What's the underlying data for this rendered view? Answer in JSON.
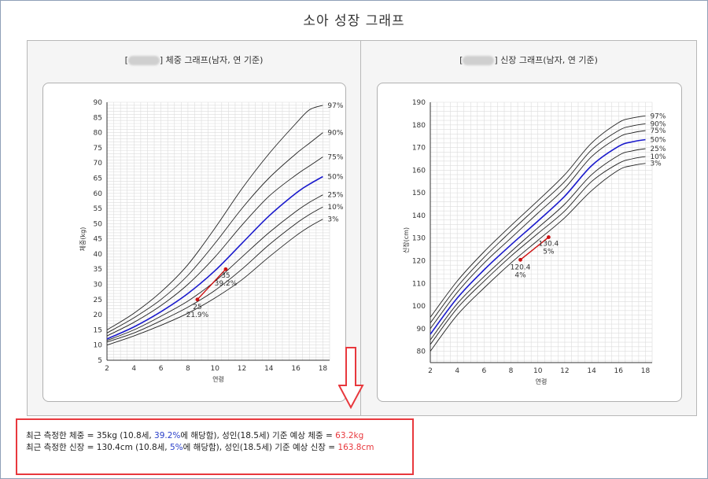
{
  "title": "소아 성장 그래프",
  "weight_panel": {
    "title_suffix": "] 체중 그래프(남자, 연 기준)"
  },
  "height_panel": {
    "title_suffix": "] 신장 그래프(남자, 연 기준)"
  },
  "summary": {
    "line1": {
      "a": "최근 측정한 체중 = 35kg (10.8세, ",
      "pct": "39.2%",
      "b": "에 해당함), 성인(18.5세) 기준 예상 체중 = ",
      "pred": "63.2kg"
    },
    "line2": {
      "a": "최근 측정한 신장 = 130.4cm (10.8세, ",
      "pct": "5%",
      "b": "에 해당함), 성인(18.5세) 기준 예상 신장 = ",
      "pred": "163.8cm"
    }
  },
  "colors": {
    "median_line": "#1a1acc",
    "measure": "#cc1111",
    "highlight": "#e8383d",
    "grid": "#dcdcdc"
  },
  "chart_data": [
    {
      "type": "line",
      "title": "",
      "xlabel": "연령",
      "ylabel": "체중(kg)",
      "xlim": [
        2,
        18.5
      ],
      "ylim": [
        5,
        90
      ],
      "xticks": [
        2,
        4,
        6,
        8,
        10,
        12,
        14,
        16,
        18
      ],
      "yticks": [
        5,
        10,
        15,
        20,
        25,
        30,
        35,
        40,
        45,
        50,
        55,
        60,
        65,
        70,
        75,
        80,
        85,
        90
      ],
      "grid": true,
      "x": [
        2,
        4,
        6,
        8,
        10,
        12,
        14,
        16,
        17,
        18
      ],
      "series": [
        {
          "name": "3%",
          "values": [
            10,
            13,
            16.5,
            20.5,
            25.5,
            31.5,
            39,
            46,
            49,
            51.5
          ]
        },
        {
          "name": "10%",
          "values": [
            11,
            14,
            18,
            22.5,
            28,
            35,
            43,
            50,
            53,
            55.5
          ]
        },
        {
          "name": "25%",
          "values": [
            11.5,
            15,
            19.5,
            24.5,
            31,
            39,
            47,
            54,
            57,
            59.5
          ]
        },
        {
          "name": "50%",
          "values": [
            12,
            16,
            21,
            27,
            34.5,
            43.5,
            52.5,
            60,
            63,
            65.5
          ]
        },
        {
          "name": "75%",
          "values": [
            13,
            17.5,
            23,
            30,
            39,
            49.5,
            59,
            66,
            69,
            72
          ]
        },
        {
          "name": "90%",
          "values": [
            14,
            19,
            25,
            33,
            43.5,
            55,
            65,
            73,
            76.5,
            80
          ]
        },
        {
          "name": "97%",
          "values": [
            15,
            20.5,
            27.5,
            36.5,
            48.5,
            61.5,
            73,
            83,
            87.5,
            89
          ]
        }
      ],
      "measurements": [
        {
          "x": 8.7,
          "y": 25,
          "label": "25",
          "pct_label": "21.9%"
        },
        {
          "x": 10.8,
          "y": 35,
          "label": "35",
          "pct_label": "39.2%"
        }
      ]
    },
    {
      "type": "line",
      "title": "",
      "xlabel": "연령",
      "ylabel": "신장(cm)",
      "xlim": [
        2,
        18.5
      ],
      "ylim": [
        75,
        190
      ],
      "xticks": [
        2,
        4,
        6,
        8,
        10,
        12,
        14,
        16,
        18
      ],
      "yticks": [
        80,
        90,
        100,
        110,
        120,
        130,
        140,
        150,
        160,
        170,
        180,
        190
      ],
      "grid": true,
      "x": [
        2,
        4,
        6,
        8,
        10,
        12,
        14,
        16,
        17,
        18
      ],
      "series": [
        {
          "name": "3%",
          "values": [
            80,
            96,
            108,
            119,
            129,
            139,
            151,
            160,
            162,
            163
          ]
        },
        {
          "name": "10%",
          "values": [
            83,
            99,
            111,
            122,
            132,
            142,
            155,
            163,
            165,
            166
          ]
        },
        {
          "name": "25%",
          "values": [
            85,
            101,
            113,
            124,
            134.5,
            145,
            158,
            166.5,
            168.5,
            169.5
          ]
        },
        {
          "name": "50%",
          "values": [
            87.5,
            103.5,
            116,
            127,
            137.5,
            148.5,
            162,
            170.5,
            172.5,
            173.5
          ]
        },
        {
          "name": "75%",
          "values": [
            90,
            106,
            119,
            130,
            141,
            152,
            166,
            174.5,
            176.5,
            177.5
          ]
        },
        {
          "name": "90%",
          "values": [
            92.5,
            108.5,
            121.5,
            133,
            144,
            155,
            169,
            177.5,
            179.5,
            180.5
          ]
        },
        {
          "name": "97%",
          "values": [
            95,
            111,
            124,
            135.5,
            146.5,
            158,
            172,
            181,
            183,
            184
          ]
        }
      ],
      "measurements": [
        {
          "x": 8.7,
          "y": 120.4,
          "label": "120.4",
          "pct_label": "4%"
        },
        {
          "x": 10.8,
          "y": 130.4,
          "label": "130.4",
          "pct_label": "5%"
        }
      ]
    }
  ]
}
